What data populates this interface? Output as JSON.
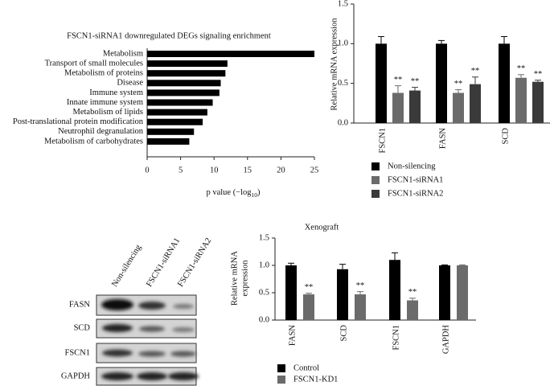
{
  "chart_data": [
    {
      "type": "hbar",
      "title": "FSCN1-siRNA1 downregulated DEGs signaling enrichment",
      "categories": [
        "Metabolism",
        "Transport of small molecules",
        "Metabolism of proteins",
        "Disease",
        "Immune system",
        "Innate immune system",
        "Metabolism of lipids",
        "Post-translational protein modification",
        "Neutrophil degranulation",
        "Metabolism of carbohydrates"
      ],
      "values": [
        25,
        12,
        11.7,
        11,
        10.8,
        9.8,
        9,
        8.3,
        7,
        6.3
      ],
      "color": "#000000",
      "xlim": [
        0,
        25
      ],
      "xticks": [
        0,
        5,
        10,
        15,
        20,
        25
      ],
      "xlabel": "p value (−log",
      "xlabel_subscript": "10",
      "xlabel_end": ")"
    },
    {
      "type": "grouped_bar",
      "ylabel": [
        "Relative mRNA expression"
      ],
      "categories": [
        "FSCN1",
        "FASN",
        "SCD"
      ],
      "ylim": [
        0,
        1.5
      ],
      "yticks": [
        {
          "value": 0,
          "label": "0.0"
        },
        0.5,
        {
          "value": 1,
          "label": "1.0"
        },
        1.5
      ],
      "series": [
        {
          "name": "Non-silencing",
          "color": "#000000",
          "values": [
            1.0,
            1.0,
            1.0
          ],
          "errors": [
            0.09,
            0.04,
            0.09
          ]
        },
        {
          "name": "FSCN1-siRNA1",
          "color": "#6b6b6b",
          "values": [
            0.38,
            0.38,
            0.57
          ],
          "errors": [
            0.09,
            0.04,
            0.04
          ],
          "significance": [
            "**",
            "**",
            "**"
          ]
        },
        {
          "name": "FSCN1-siRNA2",
          "color": "#3a3a3a",
          "values": [
            0.41,
            0.49,
            0.52
          ],
          "errors": [
            0.04,
            0.09,
            0.02
          ],
          "significance": [
            "**",
            "**",
            "**"
          ]
        }
      ]
    },
    {
      "type": "grouped_bar",
      "title": "Xenograft",
      "ylabel": [
        "Relative mRNA",
        "expression"
      ],
      "categories": [
        "FASN",
        "SCD",
        "FSCN1",
        "GAPDH"
      ],
      "ylim": [
        0,
        1.5
      ],
      "yticks": [
        {
          "value": 0,
          "label": "0.0"
        },
        0.5,
        {
          "value": 1,
          "label": "1.0"
        },
        1.5
      ],
      "series": [
        {
          "name": "Control",
          "color": "#000000",
          "values": [
            1.0,
            0.93,
            1.1,
            1.0
          ],
          "errors": [
            0.04,
            0.09,
            0.13,
            0.01
          ]
        },
        {
          "name": "FSCN1-KD1",
          "color": "#6b6b6b",
          "values": [
            0.47,
            0.47,
            0.36,
            1.0
          ],
          "errors": [
            0.02,
            0.05,
            0.04,
            0.01
          ],
          "significance": [
            "**",
            "**",
            "**",
            null
          ]
        }
      ]
    }
  ],
  "blot": {
    "lanes": [
      "Non-silencing",
      "FSCN1-siRNA1",
      "FSCN1-siRNA2"
    ],
    "rows": [
      "FASN",
      "SCD",
      "FSCN1",
      "GAPDH"
    ]
  }
}
